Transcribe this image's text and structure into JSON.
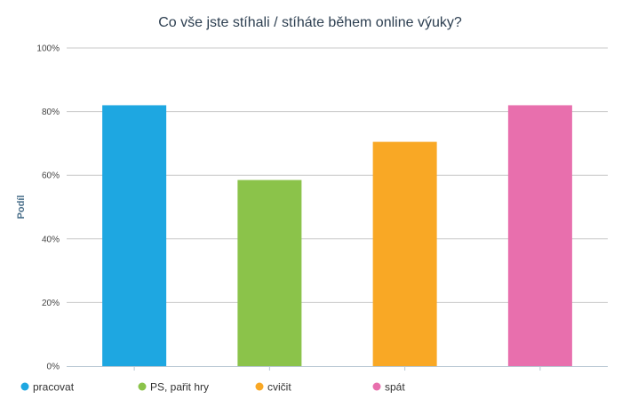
{
  "chart_data": {
    "type": "bar",
    "title": "Co vše jste stíhali / stíháte během online výuky?",
    "xlabel": "",
    "ylabel": "Podíl",
    "ylim": [
      0,
      100
    ],
    "yticks": [
      "0%",
      "20%",
      "40%",
      "60%",
      "80%",
      "100%"
    ],
    "yticks_values": [
      0,
      20,
      40,
      60,
      80,
      100
    ],
    "grid": true,
    "legend": "bottom-left",
    "categories": [
      "pracovat",
      "PS, pařit hry",
      "cvičit",
      "spát"
    ],
    "values": [
      82,
      58.5,
      70.5,
      82
    ],
    "colors": [
      "#1ea7e1",
      "#8bc34a",
      "#f9a825",
      "#e86fad"
    ]
  }
}
